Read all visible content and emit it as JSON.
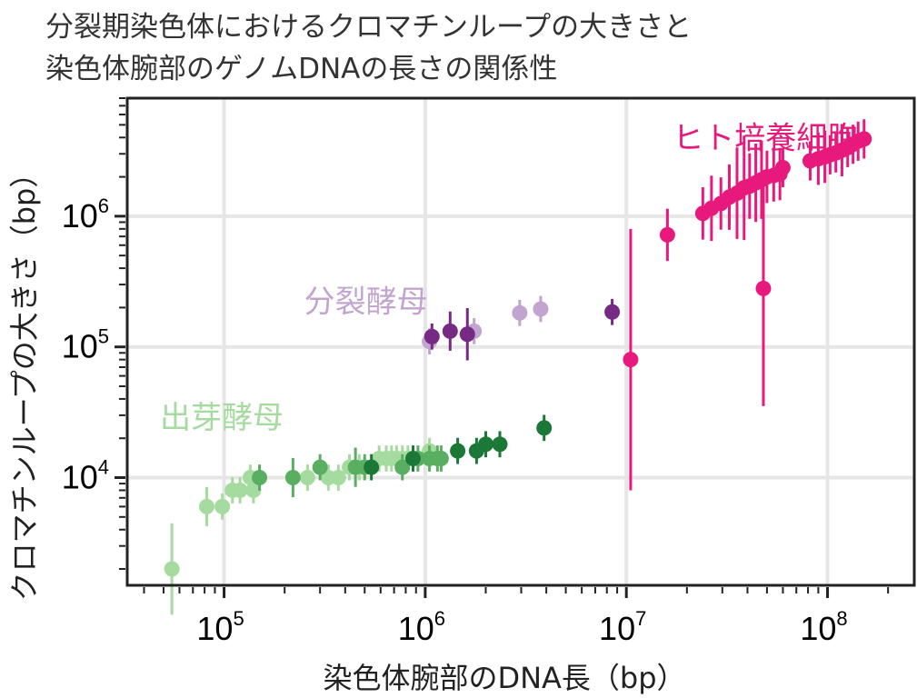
{
  "chart_data": {
    "type": "scatter",
    "title": "分裂期染色体におけるクロマチンループの大きさと",
    "subtitle": "染色体腕部のゲノムDNAの長さの関係性",
    "xlabel": "染色体腕部のDNA長（bp）",
    "ylabel": "クロマチンループの大きさ（bp）",
    "x_scale": "log",
    "y_scale": "log",
    "xlim": [
      33000,
      270000000
    ],
    "ylim": [
      1500,
      8000000
    ],
    "x_ticks": [
      {
        "value": 100000,
        "base": "10",
        "exp": "5"
      },
      {
        "value": 1000000,
        "base": "10",
        "exp": "6"
      },
      {
        "value": 10000000,
        "base": "10",
        "exp": "7"
      },
      {
        "value": 100000000,
        "base": "10",
        "exp": "8"
      }
    ],
    "y_ticks": [
      {
        "value": 10000,
        "base": "10",
        "exp": "4"
      },
      {
        "value": 100000,
        "base": "10",
        "exp": "5"
      },
      {
        "value": 1000000,
        "base": "10",
        "exp": "6"
      }
    ],
    "grid": true,
    "annotations": [
      {
        "text": "ヒト培養細胞",
        "color": "#e8197d",
        "x": 17000000,
        "y": 3300000
      },
      {
        "text": "分裂酵母",
        "color": "#c2a5cf",
        "x": 250000,
        "y": 185000
      },
      {
        "text": "出芽酵母",
        "color": "#a6dba0",
        "x": 48000,
        "y": 24000
      }
    ],
    "series": [
      {
        "color": "#a6dba0",
        "points": [
          [
            55000,
            2000,
            0.7
          ],
          [
            82000,
            6000,
            0.3
          ],
          [
            98000,
            6000,
            0.2
          ],
          [
            110000,
            8000,
            0.2
          ],
          [
            120000,
            8000,
            0.2
          ],
          [
            135000,
            10000,
            0.2
          ],
          [
            140000,
            8000,
            0.2
          ],
          [
            260000,
            10000,
            0.2
          ],
          [
            330000,
            10000,
            0.2
          ],
          [
            370000,
            10000,
            0.2
          ],
          [
            420000,
            12000,
            0.2
          ],
          [
            470000,
            12000,
            0.2
          ],
          [
            590000,
            14000,
            0.2
          ],
          [
            640000,
            14000,
            0.2
          ],
          [
            680000,
            14000,
            0.2
          ],
          [
            720000,
            14000,
            0.2
          ],
          [
            770000,
            14000,
            0.2
          ],
          [
            820000,
            14000,
            0.2
          ],
          [
            1050000,
            16000,
            0.2
          ]
        ]
      },
      {
        "color": "#5aae61",
        "points": [
          [
            150000,
            10000,
            0.2
          ],
          [
            220000,
            10000,
            0.3
          ],
          [
            300000,
            12000,
            0.2
          ],
          [
            450000,
            12000,
            0.3
          ],
          [
            500000,
            12000,
            0.2
          ],
          [
            770000,
            12000,
            0.2
          ],
          [
            920000,
            14000,
            0.2
          ],
          [
            1050000,
            14000,
            0.2
          ],
          [
            1150000,
            14000,
            0.2
          ],
          [
            1200000,
            14000,
            0.2
          ]
        ]
      },
      {
        "color": "#1b7837",
        "points": [
          [
            540000,
            12000,
            0.2
          ],
          [
            870000,
            14000,
            0.2
          ],
          [
            1450000,
            16000,
            0.2
          ],
          [
            1800000,
            16000,
            0.2
          ],
          [
            2000000,
            18000,
            0.2
          ],
          [
            2350000,
            18000,
            0.2
          ],
          [
            3900000,
            24000,
            0.2
          ]
        ]
      },
      {
        "color": "#c2a5cf",
        "points": [
          [
            1050000,
            110000,
            0.2
          ],
          [
            1750000,
            132000,
            0.2
          ],
          [
            2950000,
            182000,
            0.2
          ],
          [
            3750000,
            195000,
            0.2
          ]
        ]
      },
      {
        "color": "#762a83",
        "points": [
          [
            1080000,
            120000,
            0.2
          ],
          [
            1330000,
            132000,
            0.3
          ],
          [
            1620000,
            125000,
            0.4
          ],
          [
            8500000,
            185000,
            0.2
          ]
        ]
      },
      {
        "color": "#e8197d",
        "points": [
          [
            10500000,
            80000,
            2.0
          ],
          [
            16000000,
            720000,
            0.4
          ],
          [
            48000000,
            280000,
            1.8
          ],
          [
            24000000,
            1050000,
            0.4
          ],
          [
            26500000,
            1150000,
            0.5
          ],
          [
            29500000,
            1250000,
            0.4
          ],
          [
            32500000,
            1400000,
            0.5
          ],
          [
            35500000,
            1500000,
            0.7
          ],
          [
            38500000,
            1650000,
            0.8
          ],
          [
            41000000,
            1700000,
            0.5
          ],
          [
            44000000,
            1800000,
            0.6
          ],
          [
            47000000,
            1900000,
            0.6
          ],
          [
            50000000,
            2000000,
            0.4
          ],
          [
            54000000,
            2050000,
            0.4
          ],
          [
            58000000,
            2100000,
            0.4
          ],
          [
            60000000,
            2350000,
            0.3
          ],
          [
            82000000,
            2650000,
            0.3
          ],
          [
            90000000,
            2750000,
            0.4
          ],
          [
            97000000,
            2850000,
            0.4
          ],
          [
            103000000,
            2950000,
            0.3
          ],
          [
            110000000,
            3050000,
            0.3
          ],
          [
            118000000,
            3200000,
            0.4
          ],
          [
            126000000,
            3350000,
            0.3
          ],
          [
            134000000,
            3550000,
            0.3
          ],
          [
            142000000,
            3750000,
            0.3
          ],
          [
            152000000,
            3900000,
            0.3
          ]
        ]
      }
    ]
  }
}
